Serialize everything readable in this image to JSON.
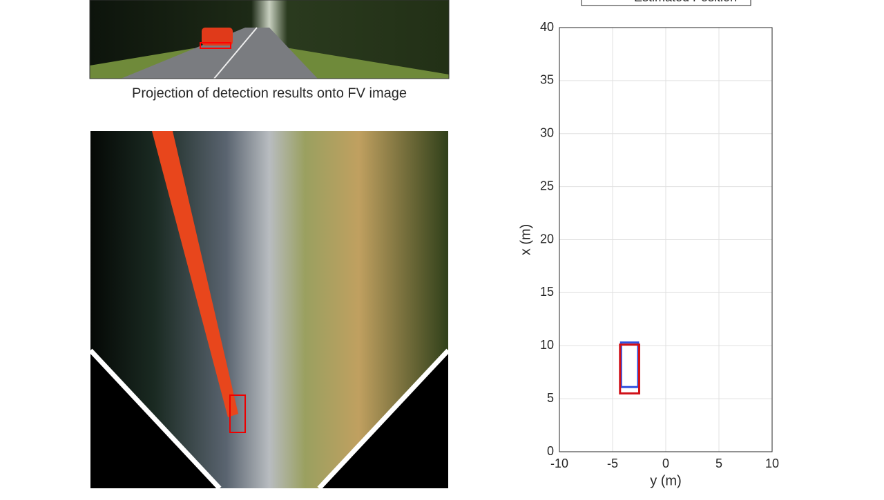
{
  "caption": "Projection of detection results onto FV image",
  "chart_data": {
    "type": "rectangle",
    "x_label": "y (m)",
    "y_label": "x (m)",
    "xlim": [
      -10,
      10
    ],
    "ylim": [
      0,
      40
    ],
    "xticks": [
      -10,
      -5,
      0,
      5,
      10
    ],
    "yticks": [
      0,
      5,
      10,
      15,
      20,
      25,
      30,
      35,
      40
    ],
    "grid": true,
    "series": [
      {
        "name": "Estimated Position",
        "color": "#3050e0",
        "x": [
          -4.2,
          -2.6
        ],
        "values": [
          6.1,
          10.3
        ]
      },
      {
        "color": "#d01018",
        "x": [
          -4.3,
          -2.5
        ],
        "values": [
          5.5,
          10.1
        ]
      }
    ]
  }
}
